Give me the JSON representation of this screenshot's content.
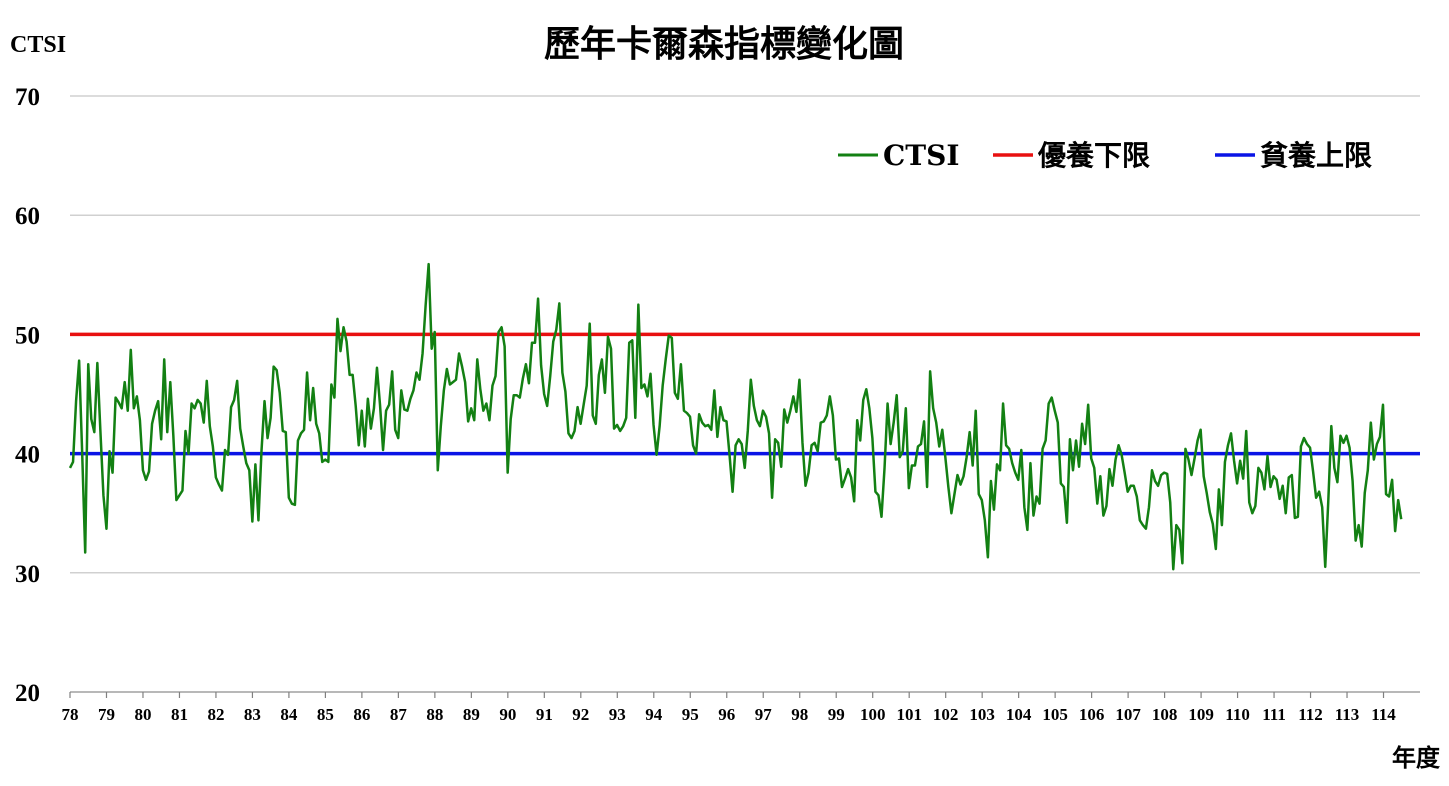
{
  "chart_data": {
    "type": "line",
    "title": "歷年卡爾森指標變化圖",
    "ylabel": "CTSI",
    "xlabel": "年度",
    "ylim": [
      20,
      70
    ],
    "yticks": [
      20,
      30,
      40,
      50,
      60,
      70
    ],
    "xticks": [
      "78",
      "79",
      "80",
      "81",
      "82",
      "83",
      "84",
      "85",
      "86",
      "87",
      "88",
      "89",
      "90",
      "91",
      "92",
      "93",
      "94",
      "95",
      "96",
      "97",
      "98",
      "99",
      "100",
      "101",
      "102",
      "103",
      "104",
      "105",
      "106",
      "107",
      "108",
      "109",
      "110",
      "111",
      "112",
      "113",
      "114"
    ],
    "grid": true,
    "legend": "top-right",
    "series": [
      {
        "name": "CTSI",
        "color": "#138013",
        "type": "line",
        "x_start": 78,
        "step": 0.0833,
        "values": [
          38.8,
          39.3,
          44.4,
          47.8,
          40.1,
          31.7,
          47.5,
          42.9,
          41.8,
          47.6,
          41.9,
          36.5,
          33.7,
          40.2,
          38.4,
          44.7,
          44.3,
          43.8,
          46.0,
          43.6,
          48.7,
          43.8,
          44.8,
          42.8,
          38.6,
          37.8,
          38.5,
          42.5,
          43.6,
          44.4,
          41.2,
          47.9,
          41.8,
          46.0,
          41.5,
          36.1,
          36.5,
          36.9,
          41.9,
          40.0,
          44.2,
          43.8,
          44.5,
          44.2,
          42.6,
          46.1,
          42.3,
          40.6,
          38.0,
          37.4,
          36.9,
          40.3,
          39.9,
          43.9,
          44.5,
          46.1,
          42.1,
          40.6,
          39.2,
          38.6,
          34.3,
          39.1,
          34.4,
          40.2,
          44.4,
          41.3,
          43.0,
          47.3,
          47.0,
          45.1,
          41.9,
          41.8,
          36.3,
          35.8,
          35.7,
          41.1,
          41.7,
          42.0,
          46.8,
          42.8,
          45.5,
          42.5,
          41.7,
          39.3,
          39.5,
          39.3,
          45.8,
          44.7,
          51.3,
          48.6,
          50.6,
          49.4,
          46.6,
          46.6,
          44.0,
          40.7,
          43.6,
          40.6,
          44.6,
          42.1,
          43.8,
          47.2,
          44.1,
          40.3,
          43.6,
          44.1,
          46.9,
          42.0,
          41.3,
          45.3,
          43.7,
          43.6,
          44.6,
          45.3,
          46.8,
          46.2,
          48.4,
          52.4,
          55.9,
          48.8,
          50.2,
          38.6,
          42.3,
          45.3,
          47.1,
          45.8,
          46.0,
          46.2,
          48.4,
          47.3,
          46.0,
          42.7,
          43.8,
          42.8,
          47.9,
          45.4,
          43.6,
          44.2,
          42.8,
          45.7,
          46.5,
          50.2,
          50.6,
          49.0,
          38.4,
          42.9,
          44.9,
          44.9,
          44.7,
          46.3,
          47.5,
          45.9,
          49.3,
          49.3,
          53.0,
          47.4,
          45.0,
          44.0,
          46.5,
          49.4,
          50.4,
          52.6,
          46.8,
          45.2,
          41.7,
          41.3,
          41.9,
          43.9,
          42.5,
          44.1,
          45.7,
          50.9,
          43.2,
          42.5,
          46.6,
          47.9,
          45.1,
          49.8,
          48.8,
          42.1,
          42.4,
          41.9,
          42.3,
          43.0,
          49.3,
          49.5,
          43.0,
          52.5,
          45.5,
          45.8,
          44.8,
          46.7,
          42.4,
          39.9,
          42.3,
          45.7,
          47.9,
          49.9,
          49.7,
          45.1,
          44.6,
          47.5,
          43.6,
          43.4,
          43.1,
          40.7,
          40.0,
          43.3,
          42.6,
          42.3,
          42.4,
          42.0,
          45.3,
          41.4,
          43.9,
          42.8,
          42.7,
          39.9,
          36.8,
          40.7,
          41.2,
          40.8,
          38.8,
          41.9,
          46.2,
          44.0,
          42.8,
          42.3,
          43.6,
          43.1,
          41.7,
          36.3,
          41.2,
          40.9,
          38.9,
          43.7,
          42.6,
          43.6,
          44.8,
          43.5,
          46.2,
          40.9,
          37.3,
          38.4,
          40.7,
          40.9,
          40.2,
          42.6,
          42.7,
          43.2,
          44.8,
          43.2,
          39.5,
          39.6,
          37.2,
          37.9,
          38.7,
          38.0,
          36.0,
          42.8,
          41.1,
          44.5,
          45.4,
          43.8,
          41.3,
          36.8,
          36.5,
          34.7,
          38.8,
          44.2,
          40.8,
          42.6,
          44.9,
          39.7,
          40.2,
          43.8,
          37.1,
          39.0,
          39.0,
          40.6,
          40.8,
          42.7,
          37.2,
          46.9,
          43.8,
          42.6,
          40.6,
          42.0,
          39.7,
          37.2,
          35.0,
          36.6,
          38.2,
          37.4,
          38.1,
          39.7,
          41.8,
          39.0,
          43.6,
          36.6,
          36.1,
          34.4,
          31.3,
          37.7,
          35.3,
          39.1,
          38.6,
          44.2,
          40.7,
          40.4,
          39.2,
          38.4,
          37.8,
          40.3,
          35.5,
          33.6,
          39.2,
          34.8,
          36.4,
          35.8,
          40.4,
          41.1,
          44.2,
          44.7,
          43.6,
          42.6,
          37.5,
          37.2,
          34.2,
          41.2,
          38.6,
          41.1,
          38.9,
          42.5,
          40.8,
          44.1,
          39.6,
          38.8,
          35.8,
          38.1,
          34.8,
          35.6,
          38.7,
          37.3,
          39.5,
          40.7,
          39.9,
          38.4,
          36.8,
          37.3,
          37.3,
          36.4,
          34.4,
          34.0,
          33.7,
          35.5,
          38.6,
          37.7,
          37.3,
          38.2,
          38.4,
          38.3,
          35.9,
          30.3,
          34.0,
          33.6,
          30.8,
          40.4,
          39.5,
          38.2,
          39.6,
          41.1,
          42.0,
          38.1,
          36.7,
          35.1,
          34.1,
          32.0,
          37.0,
          34.0,
          39.3,
          40.7,
          41.7,
          39.4,
          37.5,
          39.4,
          37.9,
          41.9,
          35.9,
          35.0,
          35.6,
          38.8,
          38.4,
          37.0,
          39.8,
          37.2,
          38.1,
          37.8,
          36.2,
          37.3,
          35.0,
          38.0,
          38.2,
          34.6,
          34.7,
          40.6,
          41.3,
          40.8,
          40.5,
          38.5,
          36.3,
          36.8,
          35.5,
          30.5,
          36.0,
          42.3,
          38.8,
          37.6,
          41.5,
          40.9,
          41.5,
          40.5,
          37.7,
          32.7,
          34.0,
          32.2,
          36.7,
          38.6,
          42.6,
          39.5,
          40.8,
          41.4,
          44.1,
          36.6,
          36.4,
          37.8,
          33.5,
          36.1,
          34.5
        ]
      },
      {
        "name": "優養下限",
        "color": "#E81010",
        "type": "hline",
        "value": 50
      },
      {
        "name": "貧養上限",
        "color": "#0A14E6",
        "type": "hline",
        "value": 40
      }
    ]
  }
}
